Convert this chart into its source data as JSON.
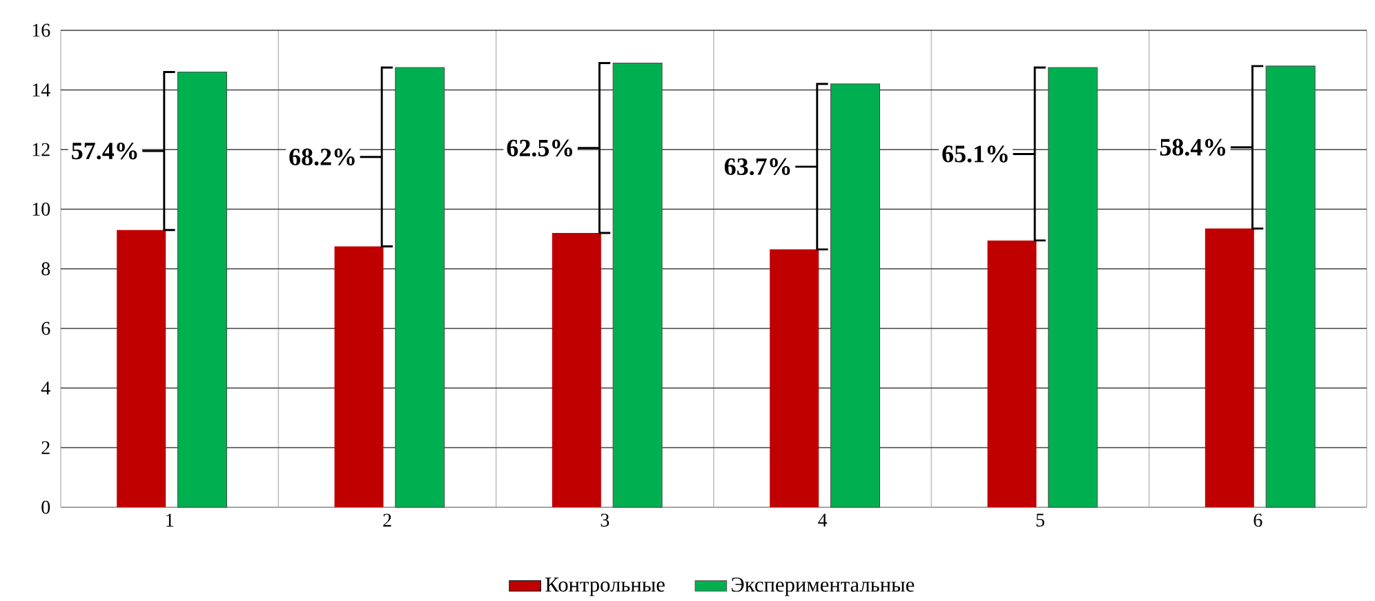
{
  "chart_data": {
    "type": "bar",
    "categories": [
      "1",
      "2",
      "3",
      "4",
      "5",
      "6"
    ],
    "series": [
      {
        "name": "Контрольные",
        "color": "#c00000",
        "values": [
          9.3,
          8.75,
          9.2,
          8.65,
          8.95,
          9.35
        ]
      },
      {
        "name": "Экспериментальные",
        "color": "#00b050",
        "values": [
          14.6,
          14.75,
          14.9,
          14.2,
          14.75,
          14.8
        ]
      }
    ],
    "ylim": [
      0,
      16
    ],
    "yticks": [
      0,
      2,
      4,
      6,
      8,
      10,
      12,
      14,
      16
    ],
    "grid": true,
    "legend": "bottom",
    "annotations": [
      "57.4%",
      "68.2%",
      "62.5%",
      "63.7%",
      "65.1%",
      "58.4%"
    ]
  }
}
